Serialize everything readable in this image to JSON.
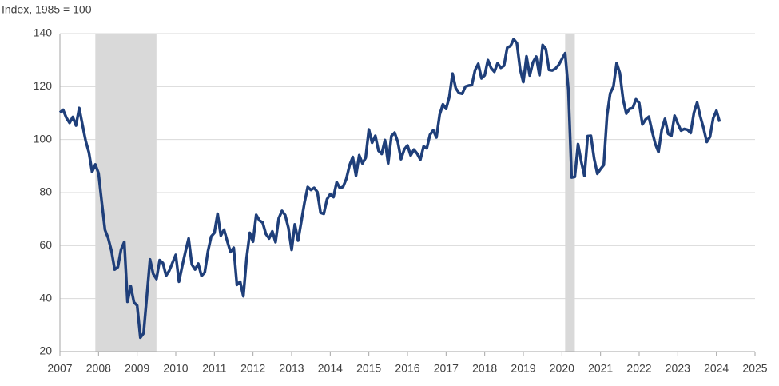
{
  "chart_data": {
    "type": "line",
    "title": "Index, 1985 = 100",
    "xlim": [
      2007,
      2025
    ],
    "xticks": [
      2007,
      2008,
      2009,
      2010,
      2011,
      2012,
      2013,
      2014,
      2015,
      2016,
      2017,
      2018,
      2019,
      2020,
      2021,
      2022,
      2023,
      2024,
      2025
    ],
    "ylim": [
      20,
      140
    ],
    "yticks": [
      20,
      40,
      60,
      80,
      100,
      120,
      140
    ],
    "grid": true,
    "recessions": [
      [
        2007.917,
        2009.5
      ],
      [
        2020.083,
        2020.333
      ]
    ],
    "recession_color": "#d9d9d9",
    "x": [
      2007,
      2007.083,
      2007.167,
      2007.25,
      2007.333,
      2007.417,
      2007.5,
      2007.583,
      2007.667,
      2007.75,
      2007.833,
      2007.917,
      2008,
      2008.083,
      2008.167,
      2008.25,
      2008.333,
      2008.417,
      2008.5,
      2008.583,
      2008.667,
      2008.75,
      2008.833,
      2008.917,
      2009,
      2009.083,
      2009.167,
      2009.25,
      2009.333,
      2009.417,
      2009.5,
      2009.583,
      2009.667,
      2009.75,
      2009.833,
      2009.917,
      2010,
      2010.083,
      2010.167,
      2010.25,
      2010.333,
      2010.417,
      2010.5,
      2010.583,
      2010.667,
      2010.75,
      2010.833,
      2010.917,
      2011,
      2011.083,
      2011.167,
      2011.25,
      2011.333,
      2011.417,
      2011.5,
      2011.583,
      2011.667,
      2011.75,
      2011.833,
      2011.917,
      2012,
      2012.083,
      2012.167,
      2012.25,
      2012.333,
      2012.417,
      2012.5,
      2012.583,
      2012.667,
      2012.75,
      2012.833,
      2012.917,
      2013,
      2013.083,
      2013.167,
      2013.25,
      2013.333,
      2013.417,
      2013.5,
      2013.583,
      2013.667,
      2013.75,
      2013.833,
      2013.917,
      2014,
      2014.083,
      2014.167,
      2014.25,
      2014.333,
      2014.417,
      2014.5,
      2014.583,
      2014.667,
      2014.75,
      2014.833,
      2014.917,
      2015,
      2015.083,
      2015.167,
      2015.25,
      2015.333,
      2015.417,
      2015.5,
      2015.583,
      2015.667,
      2015.75,
      2015.833,
      2015.917,
      2016,
      2016.083,
      2016.167,
      2016.25,
      2016.333,
      2016.417,
      2016.5,
      2016.583,
      2016.667,
      2016.75,
      2016.833,
      2016.917,
      2017,
      2017.083,
      2017.167,
      2017.25,
      2017.333,
      2017.417,
      2017.5,
      2017.583,
      2017.667,
      2017.75,
      2017.833,
      2017.917,
      2018,
      2018.083,
      2018.167,
      2018.25,
      2018.333,
      2018.417,
      2018.5,
      2018.583,
      2018.667,
      2018.75,
      2018.833,
      2018.917,
      2019,
      2019.083,
      2019.167,
      2019.25,
      2019.333,
      2019.417,
      2019.5,
      2019.583,
      2019.667,
      2019.75,
      2019.833,
      2019.917,
      2020,
      2020.083,
      2020.167,
      2020.25,
      2020.333,
      2020.417,
      2020.5,
      2020.583,
      2020.667,
      2020.75,
      2020.833,
      2020.917,
      2021,
      2021.083,
      2021.167,
      2021.25,
      2021.333,
      2021.417,
      2021.5,
      2021.583,
      2021.667,
      2021.75,
      2021.833,
      2021.917,
      2022,
      2022.083,
      2022.167,
      2022.25,
      2022.333,
      2022.417,
      2022.5,
      2022.583,
      2022.667,
      2022.75,
      2022.833,
      2022.917,
      2023,
      2023.083,
      2023.167,
      2023.25,
      2023.333,
      2023.417,
      2023.5,
      2023.583,
      2023.667,
      2023.75,
      2023.833,
      2023.917,
      2024,
      2024.083
    ],
    "series": [
      {
        "color": "#1f3f7a",
        "values": [
          110.2,
          111.2,
          108.2,
          106.3,
          108.5,
          105.3,
          111.9,
          105.6,
          99.5,
          95.2,
          87.8,
          90.6,
          87.3,
          76.4,
          65.9,
          62.8,
          58.1,
          51.0,
          51.9,
          58.5,
          61.4,
          38.8,
          44.7,
          38.6,
          37.4,
          25.3,
          26.9,
          40.8,
          54.8,
          49.3,
          47.4,
          54.5,
          53.4,
          48.7,
          50.6,
          53.6,
          56.5,
          46.4,
          52.3,
          57.7,
          62.7,
          52.9,
          51.0,
          53.2,
          48.6,
          49.9,
          57.8,
          63.4,
          64.8,
          72.0,
          63.8,
          66.0,
          61.7,
          57.6,
          59.2,
          45.2,
          46.4,
          40.9,
          55.2,
          64.8,
          61.5,
          71.6,
          69.5,
          68.7,
          64.4,
          62.7,
          65.4,
          61.3,
          70.3,
          73.1,
          71.5,
          66.7,
          58.4,
          68.0,
          61.9,
          69.0,
          76.2,
          82.1,
          81.0,
          81.8,
          80.2,
          72.4,
          72.0,
          77.5,
          79.4,
          78.3,
          83.9,
          81.7,
          82.2,
          85.2,
          90.3,
          93.4,
          86.4,
          94.1,
          91.0,
          93.1,
          103.8,
          98.8,
          101.4,
          95.8,
          94.6,
          99.8,
          91.0,
          101.3,
          102.6,
          99.1,
          92.6,
          96.3,
          97.8,
          94.0,
          96.2,
          94.7,
          92.4,
          97.4,
          96.7,
          101.8,
          103.5,
          100.8,
          109.4,
          113.3,
          111.6,
          116.1,
          124.9,
          119.4,
          117.6,
          117.3,
          120.0,
          120.4,
          120.6,
          126.2,
          128.6,
          123.1,
          124.3,
          130.0,
          127.0,
          125.6,
          128.8,
          127.1,
          127.9,
          134.7,
          135.3,
          137.9,
          136.4,
          126.6,
          121.7,
          131.4,
          124.2,
          129.2,
          131.3,
          124.3,
          135.7,
          134.2,
          126.3,
          126.1,
          126.8,
          128.2,
          130.4,
          132.6,
          118.8,
          85.7,
          85.9,
          98.3,
          91.7,
          86.3,
          101.3,
          101.4,
          92.9,
          87.1,
          88.9,
          90.4,
          109.0,
          117.5,
          120.0,
          128.9,
          125.1,
          115.2,
          109.8,
          111.6,
          111.9,
          115.2,
          113.8,
          105.7,
          107.6,
          108.6,
          103.2,
          98.4,
          95.3,
          103.6,
          107.8,
          102.2,
          101.4,
          109.0,
          106.0,
          103.4,
          104.0,
          103.7,
          102.5,
          110.1,
          114.0,
          108.7,
          104.3,
          99.1,
          101.0,
          108.0,
          110.9,
          106.7
        ]
      }
    ]
  }
}
